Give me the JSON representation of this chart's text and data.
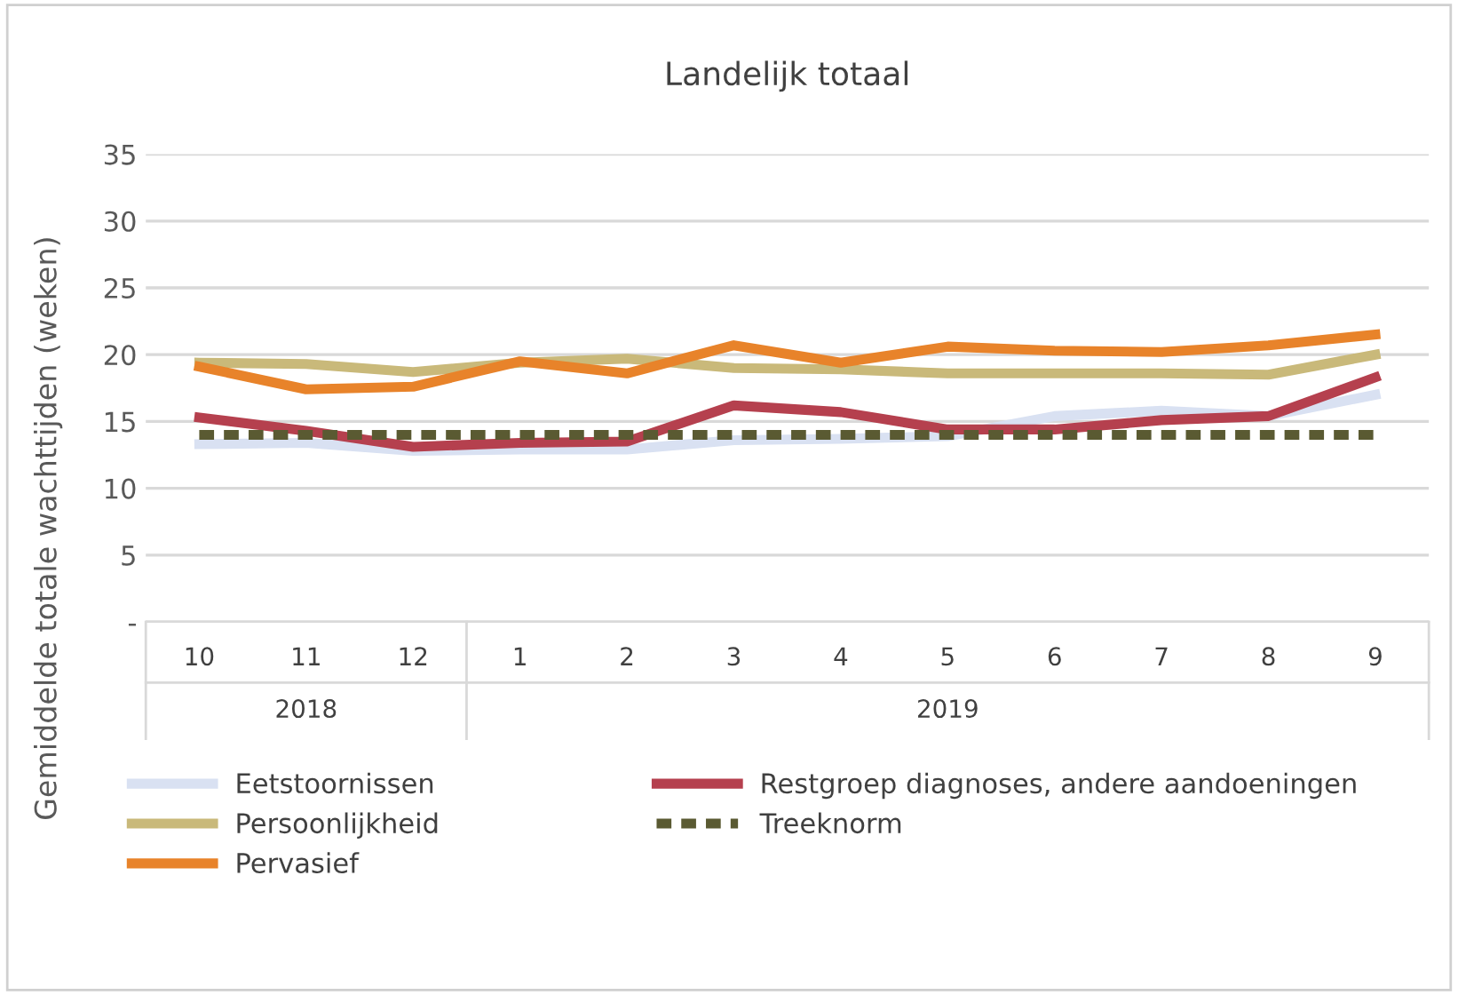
{
  "chart_data": {
    "type": "line",
    "title": "Landelijk totaal",
    "ylabel": "Gemiddelde totale wachttijden (weken)",
    "categories": [
      "10",
      "11",
      "12",
      "1",
      "2",
      "3",
      "4",
      "5",
      "6",
      "7",
      "8",
      "9"
    ],
    "series": [
      {
        "name": "Eetstoornissen",
        "color": "#d9e1f2",
        "values": [
          13.3,
          13.4,
          12.8,
          12.9,
          12.9,
          13.6,
          13.7,
          13.9,
          15.4,
          15.8,
          15.4,
          17.0
        ]
      },
      {
        "name": "Persoonlijkheid",
        "color": "#c9b97a",
        "values": [
          19.4,
          19.3,
          18.7,
          19.4,
          19.7,
          19.0,
          18.9,
          18.6,
          18.6,
          18.6,
          18.5,
          20.0
        ]
      },
      {
        "name": "Pervasief",
        "color": "#e8832a",
        "values": [
          19.1,
          17.4,
          17.6,
          19.5,
          18.6,
          20.7,
          19.4,
          20.6,
          20.3,
          20.2,
          20.7,
          21.5
        ]
      },
      {
        "name": "Restgroep diagnoses, andere aandoeningen",
        "color": "#b5404e",
        "values": [
          15.3,
          14.3,
          13.1,
          13.4,
          13.5,
          16.2,
          15.7,
          14.4,
          14.4,
          15.1,
          15.4,
          18.3
        ]
      },
      {
        "name": "Treeknorm",
        "color": "#5a5a32",
        "line_style": "dashed",
        "values": [
          14,
          14,
          14,
          14,
          14,
          14,
          14,
          14,
          14,
          14,
          14,
          14
        ]
      }
    ],
    "annotations": [
      "2018",
      "2019"
    ],
    "ylim": [
      0,
      35
    ],
    "yticks": [
      {
        "value": 0,
        "label": "-"
      },
      5,
      10,
      15,
      20,
      25,
      30,
      35
    ],
    "grid": "y",
    "legend": "bottom",
    "marker": "none"
  }
}
